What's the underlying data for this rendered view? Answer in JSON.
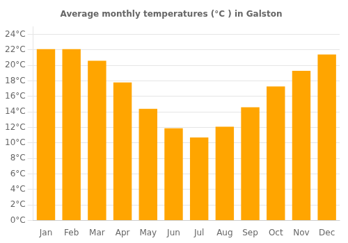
{
  "chart_data": {
    "type": "bar",
    "title": "Average monthly temperatures (°C ) in Galston",
    "categories": [
      "Jan",
      "Feb",
      "Mar",
      "Apr",
      "May",
      "Jun",
      "Jul",
      "Aug",
      "Sep",
      "Oct",
      "Nov",
      "Dec"
    ],
    "values": [
      22.1,
      22.1,
      20.6,
      17.8,
      14.4,
      11.9,
      10.7,
      12.1,
      14.6,
      17.3,
      19.3,
      21.4
    ],
    "color": "#FFA500",
    "ylim": [
      0,
      25
    ],
    "yticks": [
      {
        "value": 0,
        "label": "0°C"
      },
      {
        "value": 2,
        "label": "2°C"
      },
      {
        "value": 4,
        "label": "4°C"
      },
      {
        "value": 6,
        "label": "6°C"
      },
      {
        "value": 8,
        "label": "8°C"
      },
      {
        "value": 10,
        "label": "10°C"
      },
      {
        "value": 12,
        "label": "12°C"
      },
      {
        "value": 14,
        "label": "14°C"
      },
      {
        "value": 16,
        "label": "16°C"
      },
      {
        "value": 18,
        "label": "18°C"
      },
      {
        "value": 20,
        "label": "20°C"
      },
      {
        "value": 22,
        "label": "22°C"
      },
      {
        "value": 24,
        "label": "24°C"
      }
    ],
    "grid": true
  }
}
